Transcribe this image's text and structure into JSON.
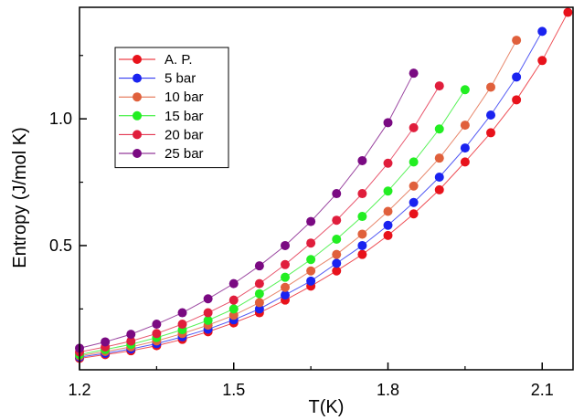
{
  "chart_data": {
    "type": "line",
    "title": "",
    "xlabel": "T(K)",
    "ylabel": "Entropy (J/mol K)",
    "xlim": [
      1.2,
      2.16
    ],
    "ylim": [
      0.01,
      1.44
    ],
    "xticks": [
      1.2,
      1.5,
      1.8,
      2.1
    ],
    "xtick_labels": [
      "1.2",
      "1.5",
      "1.8",
      "2.1"
    ],
    "yticks": [
      0.5,
      1.0
    ],
    "ytick_labels": [
      "0.5",
      "1.0"
    ],
    "grid": false,
    "legend_position": "top-left",
    "series": [
      {
        "name": "A. P.",
        "color": "#e8121b",
        "x": [
          1.2,
          1.25,
          1.3,
          1.35,
          1.4,
          1.45,
          1.5,
          1.55,
          1.6,
          1.65,
          1.7,
          1.75,
          1.8,
          1.85,
          1.9,
          1.95,
          2.0,
          2.05,
          2.1,
          2.15
        ],
        "y": [
          0.055,
          0.07,
          0.085,
          0.105,
          0.13,
          0.16,
          0.195,
          0.235,
          0.285,
          0.34,
          0.4,
          0.465,
          0.54,
          0.625,
          0.72,
          0.83,
          0.945,
          1.075,
          1.23,
          1.42
        ]
      },
      {
        "name": "5 bar",
        "color": "#1a23f0",
        "x": [
          1.2,
          1.25,
          1.3,
          1.35,
          1.4,
          1.45,
          1.5,
          1.55,
          1.6,
          1.65,
          1.7,
          1.75,
          1.8,
          1.85,
          1.9,
          1.95,
          2.0,
          2.05,
          2.1
        ],
        "y": [
          0.06,
          0.075,
          0.092,
          0.113,
          0.14,
          0.17,
          0.207,
          0.25,
          0.305,
          0.36,
          0.43,
          0.5,
          0.58,
          0.67,
          0.77,
          0.885,
          1.015,
          1.165,
          1.345
        ]
      },
      {
        "name": "10 bar",
        "color": "#e0603c",
        "x": [
          1.2,
          1.25,
          1.3,
          1.35,
          1.4,
          1.45,
          1.5,
          1.55,
          1.6,
          1.65,
          1.7,
          1.75,
          1.8,
          1.85,
          1.9,
          1.95,
          2.0,
          2.05
        ],
        "y": [
          0.065,
          0.082,
          0.1,
          0.124,
          0.153,
          0.186,
          0.225,
          0.275,
          0.335,
          0.4,
          0.465,
          0.545,
          0.635,
          0.735,
          0.845,
          0.975,
          1.125,
          1.31
        ]
      },
      {
        "name": "15 bar",
        "color": "#22ee22",
        "x": [
          1.2,
          1.25,
          1.3,
          1.35,
          1.4,
          1.45,
          1.5,
          1.55,
          1.6,
          1.65,
          1.7,
          1.75,
          1.8,
          1.85,
          1.9,
          1.95
        ],
        "y": [
          0.07,
          0.09,
          0.11,
          0.137,
          0.168,
          0.205,
          0.25,
          0.31,
          0.375,
          0.445,
          0.525,
          0.615,
          0.715,
          0.83,
          0.96,
          1.115
        ]
      },
      {
        "name": "20 bar",
        "color": "#e01e3c",
        "x": [
          1.2,
          1.25,
          1.3,
          1.35,
          1.4,
          1.45,
          1.5,
          1.55,
          1.6,
          1.65,
          1.7,
          1.75,
          1.8,
          1.85,
          1.9
        ],
        "y": [
          0.08,
          0.1,
          0.123,
          0.153,
          0.19,
          0.235,
          0.285,
          0.35,
          0.425,
          0.51,
          0.6,
          0.705,
          0.825,
          0.965,
          1.13
        ]
      },
      {
        "name": "25 bar",
        "color": "#7a0a82",
        "x": [
          1.2,
          1.25,
          1.3,
          1.35,
          1.4,
          1.45,
          1.5,
          1.55,
          1.6,
          1.65,
          1.7,
          1.75,
          1.8,
          1.85
        ],
        "y": [
          0.095,
          0.12,
          0.15,
          0.19,
          0.235,
          0.29,
          0.35,
          0.42,
          0.5,
          0.595,
          0.705,
          0.835,
          0.985,
          1.18
        ]
      }
    ]
  }
}
